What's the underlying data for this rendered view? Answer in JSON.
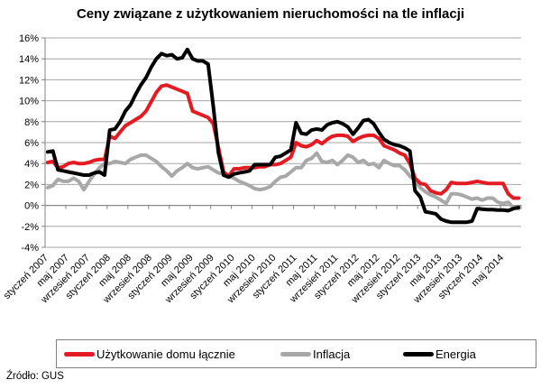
{
  "title": "Ceny związane z użytkowaniem nieruchomości na tle inflacji",
  "source": "Źródło: GUS",
  "chart_data": {
    "type": "line",
    "title": "Ceny związane z użytkowaniem nieruchomości na tle inflacji",
    "ylim": [
      -4,
      16
    ],
    "y_tick_step": 2,
    "y_tick_suffix": "%",
    "grid": true,
    "legend_position": "bottom",
    "x_tick_labels": [
      "styczeń 2007",
      "maj 2007",
      "wrzesień 2007",
      "styczeń 2008",
      "maj 2008",
      "wrzesień 2008",
      "styczeń 2009",
      "maj 2009",
      "wrzesień 2009",
      "styczeń 2010",
      "maj 2010",
      "wrzesień 2010",
      "styczeń 2011",
      "maj 2011",
      "wrzesień 2011",
      "styczeń 2012",
      "maj 2012",
      "wrzesień 2012",
      "styczeń 2013",
      "maj 2013",
      "wrzesień 2013",
      "styczeń 2014",
      "maj 2014"
    ],
    "x_frequency": "monthly",
    "series": [
      {
        "name": "Użytkowanie domu łącznie",
        "color": "#e41b23",
        "values": [
          4.1,
          4.2,
          3.6,
          3.7,
          4.0,
          4.1,
          4.0,
          4.0,
          4.1,
          4.3,
          4.4,
          4.4,
          6.6,
          6.4,
          7.0,
          7.6,
          7.9,
          8.2,
          8.5,
          9.0,
          9.9,
          10.8,
          11.4,
          11.5,
          11.3,
          11.1,
          10.9,
          10.7,
          9.0,
          8.8,
          8.6,
          8.4,
          7.8,
          5.5,
          3.2,
          2.8,
          3.5,
          3.5,
          3.6,
          3.6,
          3.6,
          3.7,
          3.7,
          3.9,
          3.9,
          4.0,
          4.3,
          4.6,
          6.0,
          5.7,
          5.6,
          5.8,
          6.2,
          5.9,
          6.3,
          6.6,
          6.7,
          6.7,
          6.6,
          6.1,
          6.4,
          6.6,
          6.7,
          6.7,
          6.4,
          5.7,
          5.5,
          5.3,
          5.0,
          4.8,
          4.0,
          2.6,
          2.1,
          2.0,
          1.4,
          1.2,
          1.1,
          1.5,
          2.2,
          2.1,
          2.1,
          2.1,
          2.2,
          2.3,
          2.2,
          2.1,
          2.1,
          2.1,
          2.1,
          1.1,
          0.7,
          0.7
        ]
      },
      {
        "name": "Inflacja",
        "color": "#a8a8a8",
        "values": [
          1.7,
          1.9,
          2.5,
          2.3,
          2.3,
          2.6,
          2.3,
          1.5,
          2.3,
          3.0,
          3.6,
          4.0,
          4.0,
          4.2,
          4.1,
          4.0,
          4.4,
          4.6,
          4.8,
          4.8,
          4.5,
          4.2,
          3.7,
          3.3,
          2.8,
          3.3,
          3.6,
          4.0,
          3.6,
          3.5,
          3.6,
          3.7,
          3.4,
          3.1,
          3.0,
          2.8,
          2.6,
          2.3,
          2.1,
          1.9,
          1.6,
          1.5,
          1.6,
          1.8,
          2.3,
          2.7,
          2.8,
          3.2,
          3.6,
          3.6,
          4.3,
          4.5,
          5.0,
          4.2,
          4.1,
          4.3,
          3.9,
          4.3,
          4.8,
          4.6,
          4.1,
          4.3,
          3.9,
          4.0,
          3.6,
          4.3,
          4.0,
          3.8,
          3.8,
          3.4,
          2.8,
          2.4,
          1.7,
          1.3,
          1.0,
          0.8,
          0.5,
          0.2,
          1.1,
          1.1,
          1.0,
          0.8,
          0.6,
          0.7,
          0.5,
          0.7,
          0.7,
          0.3,
          0.2,
          0.3,
          -0.2,
          -0.3
        ]
      },
      {
        "name": "Energia",
        "color": "#000000",
        "values": [
          5.1,
          5.2,
          3.4,
          3.3,
          3.2,
          3.1,
          3.0,
          2.9,
          2.9,
          3.1,
          3.2,
          2.9,
          7.2,
          7.3,
          8.0,
          9.0,
          9.6,
          10.6,
          11.5,
          12.2,
          13.2,
          14.0,
          14.5,
          14.3,
          14.4,
          14.0,
          14.1,
          14.9,
          14.0,
          13.8,
          13.8,
          13.5,
          9.5,
          5.0,
          2.9,
          2.7,
          3.0,
          3.1,
          3.2,
          3.3,
          3.9,
          3.9,
          3.9,
          3.9,
          4.6,
          4.7,
          5.0,
          5.3,
          7.9,
          6.9,
          6.8,
          7.2,
          7.3,
          7.2,
          7.7,
          7.9,
          8.0,
          7.8,
          7.5,
          6.8,
          7.4,
          8.1,
          8.2,
          7.8,
          7.0,
          6.3,
          6.0,
          5.8,
          5.7,
          5.5,
          5.2,
          1.4,
          0.8,
          -0.6,
          -0.7,
          -0.8,
          -1.3,
          -1.5,
          -1.6,
          -1.6,
          -1.6,
          -1.6,
          -1.5,
          -0.3,
          -0.35,
          -0.4,
          -0.4,
          -0.45,
          -0.45,
          -0.5,
          -0.3,
          -0.2
        ]
      }
    ]
  }
}
